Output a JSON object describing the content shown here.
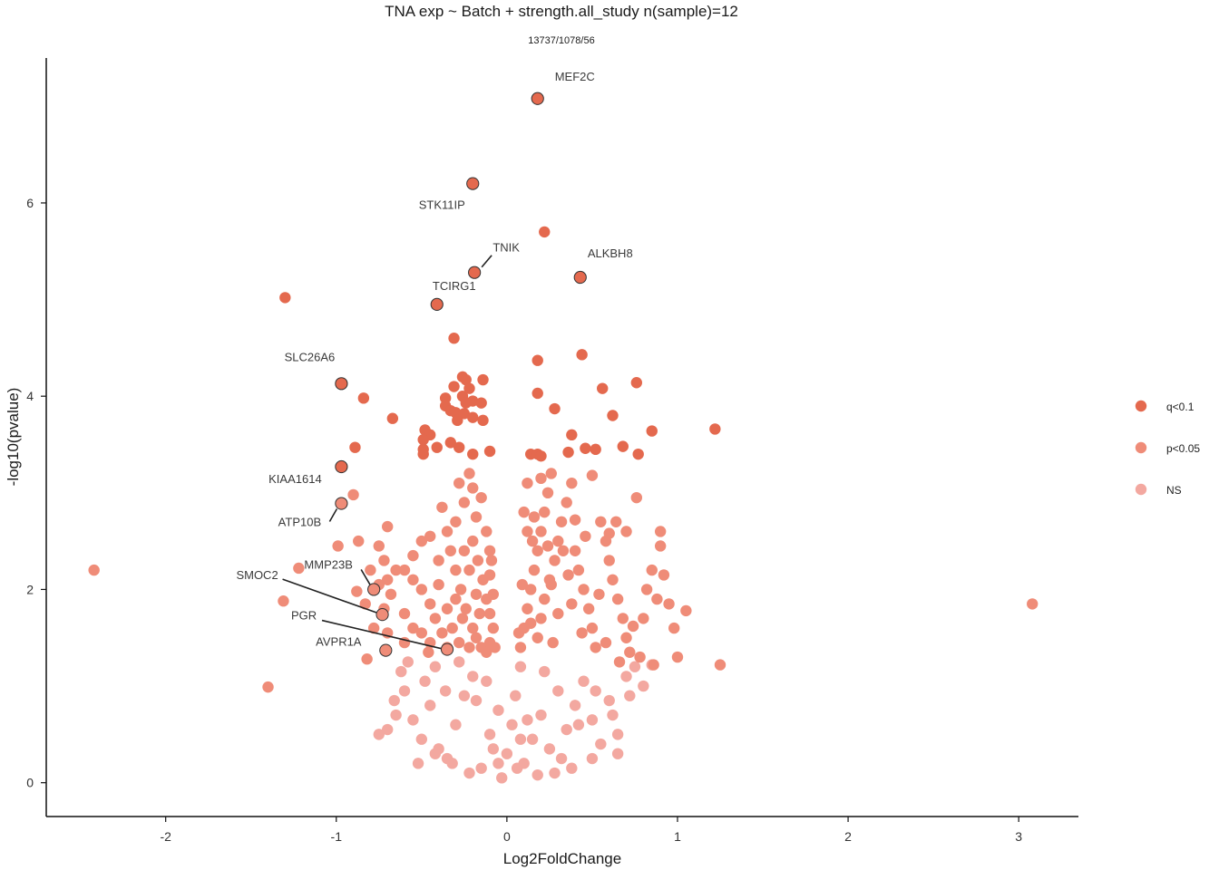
{
  "chart_data": {
    "type": "scatter",
    "title": "TNA exp ~ Batch + strength.all_study n(sample)=12",
    "subtitle": "13737/1078/56",
    "xlabel": "Log2FoldChange",
    "ylabel": "-log10(pvalue)",
    "xlim": [
      -2.7,
      3.35
    ],
    "ylim": [
      -0.35,
      7.5
    ],
    "x_ticks": [
      -2,
      -1,
      0,
      1,
      2,
      3
    ],
    "y_ticks": [
      0,
      2,
      4,
      6
    ],
    "x_tick_labels": [
      "-2",
      "-1",
      "0",
      "1",
      "2",
      "3"
    ],
    "y_tick_labels": [
      "0",
      "2",
      "4",
      "6"
    ],
    "grid": false,
    "legend_position": "right",
    "legend": [
      {
        "key": "q",
        "label": "q<0.1",
        "color": "#e4694e"
      },
      {
        "key": "p",
        "label": "p<0.05",
        "color": "#ef8c78"
      },
      {
        "key": "ns",
        "label": "NS",
        "color": "#f3a8a0"
      }
    ],
    "series": [
      {
        "name": "q<0.1",
        "color": "#e4694e",
        "points": [
          [
            -0.26,
            4.2
          ],
          [
            -0.24,
            4.17
          ],
          [
            -0.14,
            4.17
          ],
          [
            -0.31,
            4.1
          ],
          [
            -0.22,
            4.08
          ],
          [
            -0.26,
            4.0
          ],
          [
            -0.36,
            3.98
          ],
          [
            -0.2,
            3.95
          ],
          [
            -0.15,
            3.93
          ],
          [
            -0.24,
            3.93
          ],
          [
            -0.36,
            3.9
          ],
          [
            -0.33,
            3.85
          ],
          [
            -0.3,
            3.83
          ],
          [
            -0.25,
            3.82
          ],
          [
            -0.2,
            3.78
          ],
          [
            -0.29,
            3.75
          ],
          [
            -0.14,
            3.75
          ],
          [
            -0.48,
            3.65
          ],
          [
            -0.45,
            3.6
          ],
          [
            -0.49,
            3.55
          ],
          [
            -0.33,
            3.52
          ],
          [
            -0.41,
            3.47
          ],
          [
            -0.49,
            3.45
          ],
          [
            -0.49,
            3.4
          ],
          [
            -0.2,
            3.4
          ],
          [
            -0.1,
            3.43
          ],
          [
            -0.28,
            3.47
          ],
          [
            0.14,
            3.4
          ],
          [
            0.18,
            3.4
          ],
          [
            0.2,
            3.38
          ],
          [
            0.36,
            3.42
          ],
          [
            0.46,
            3.46
          ],
          [
            0.52,
            3.45
          ],
          [
            0.38,
            3.6
          ],
          [
            0.22,
            5.7
          ],
          [
            0.44,
            4.43
          ],
          [
            0.18,
            4.37
          ],
          [
            0.18,
            4.03
          ],
          [
            0.28,
            3.87
          ],
          [
            0.56,
            4.08
          ],
          [
            0.76,
            4.14
          ],
          [
            0.62,
            3.8
          ],
          [
            0.85,
            3.64
          ],
          [
            0.68,
            3.48
          ],
          [
            0.77,
            3.4
          ],
          [
            1.22,
            3.66
          ],
          [
            -0.31,
            4.6
          ],
          [
            -1.3,
            5.02
          ],
          [
            -0.84,
            3.98
          ],
          [
            -0.67,
            3.77
          ],
          [
            -0.89,
            3.47
          ]
        ]
      },
      {
        "name": "p<0.05",
        "color": "#ef8c78",
        "points": [
          [
            -2.42,
            2.2
          ],
          [
            3.08,
            1.85
          ],
          [
            -1.31,
            1.88
          ],
          [
            -1.4,
            0.99
          ],
          [
            -1.22,
            2.22
          ],
          [
            -0.99,
            2.45
          ],
          [
            -0.9,
            2.98
          ],
          [
            -0.88,
            1.98
          ],
          [
            -0.83,
            1.85
          ],
          [
            -0.87,
            2.5
          ],
          [
            -0.75,
            2.45
          ],
          [
            -0.72,
            2.3
          ],
          [
            -0.7,
            2.65
          ],
          [
            -0.7,
            2.1
          ],
          [
            -0.68,
            1.95
          ],
          [
            -0.6,
            2.2
          ],
          [
            -0.55,
            2.1
          ],
          [
            -0.5,
            2.0
          ],
          [
            -0.45,
            2.55
          ],
          [
            -0.4,
            2.3
          ],
          [
            -0.6,
            1.75
          ],
          [
            -0.8,
            2.2
          ],
          [
            -0.65,
            2.2
          ],
          [
            -0.75,
            2.05
          ],
          [
            -0.72,
            1.8
          ],
          [
            -0.55,
            1.6
          ],
          [
            -0.82,
            1.28
          ],
          [
            -0.5,
            1.55
          ],
          [
            -0.45,
            1.45
          ],
          [
            -0.6,
            1.45
          ],
          [
            -0.7,
            1.55
          ],
          [
            -0.78,
            1.6
          ],
          [
            -0.45,
            1.85
          ],
          [
            -0.55,
            2.35
          ],
          [
            -0.38,
            2.85
          ],
          [
            -0.35,
            2.6
          ],
          [
            -0.3,
            2.7
          ],
          [
            -0.28,
            3.1
          ],
          [
            -0.25,
            2.9
          ],
          [
            -0.22,
            3.2
          ],
          [
            -0.2,
            3.05
          ],
          [
            -0.18,
            2.75
          ],
          [
            -0.15,
            2.95
          ],
          [
            -0.12,
            2.6
          ],
          [
            -0.1,
            2.4
          ],
          [
            -0.33,
            2.4
          ],
          [
            -0.3,
            2.2
          ],
          [
            -0.27,
            2.0
          ],
          [
            -0.24,
            1.8
          ],
          [
            -0.2,
            1.6
          ],
          [
            -0.18,
            1.5
          ],
          [
            -0.15,
            1.4
          ],
          [
            -0.12,
            1.35
          ],
          [
            -0.1,
            1.45
          ],
          [
            -0.08,
            1.6
          ],
          [
            -0.35,
            1.8
          ],
          [
            -0.32,
            1.6
          ],
          [
            -0.28,
            1.45
          ],
          [
            -0.25,
            2.4
          ],
          [
            -0.22,
            2.2
          ],
          [
            -0.2,
            2.5
          ],
          [
            -0.17,
            2.3
          ],
          [
            -0.14,
            2.1
          ],
          [
            -0.12,
            1.9
          ],
          [
            -0.1,
            1.75
          ],
          [
            -0.4,
            2.05
          ],
          [
            -0.42,
            1.7
          ],
          [
            -0.38,
            1.55
          ],
          [
            -0.3,
            1.9
          ],
          [
            -0.26,
            1.7
          ],
          [
            -0.22,
            1.4
          ],
          [
            -0.18,
            1.95
          ],
          [
            -0.16,
            1.75
          ],
          [
            -0.1,
            2.15
          ],
          [
            -0.08,
            1.95
          ],
          [
            -0.07,
            1.4
          ],
          [
            -0.35,
            1.4
          ],
          [
            -0.5,
            2.5
          ],
          [
            -0.46,
            1.35
          ],
          [
            -0.09,
            2.3
          ],
          [
            0.08,
            1.4
          ],
          [
            0.1,
            1.6
          ],
          [
            0.12,
            1.8
          ],
          [
            0.14,
            2.0
          ],
          [
            0.16,
            2.2
          ],
          [
            0.18,
            2.4
          ],
          [
            0.2,
            2.6
          ],
          [
            0.22,
            2.8
          ],
          [
            0.24,
            3.0
          ],
          [
            0.26,
            3.2
          ],
          [
            0.1,
            2.8
          ],
          [
            0.12,
            2.6
          ],
          [
            0.15,
            2.5
          ],
          [
            0.18,
            1.5
          ],
          [
            0.2,
            1.7
          ],
          [
            0.22,
            1.9
          ],
          [
            0.25,
            2.1
          ],
          [
            0.28,
            2.3
          ],
          [
            0.3,
            2.5
          ],
          [
            0.32,
            2.7
          ],
          [
            0.35,
            2.9
          ],
          [
            0.38,
            3.1
          ],
          [
            0.4,
            2.4
          ],
          [
            0.42,
            2.2
          ],
          [
            0.45,
            2.0
          ],
          [
            0.48,
            1.8
          ],
          [
            0.5,
            1.6
          ],
          [
            0.52,
            1.4
          ],
          [
            0.55,
            2.7
          ],
          [
            0.58,
            2.5
          ],
          [
            0.6,
            2.3
          ],
          [
            0.62,
            2.1
          ],
          [
            0.65,
            1.9
          ],
          [
            0.68,
            1.7
          ],
          [
            0.7,
            1.5
          ],
          [
            0.72,
            1.35
          ],
          [
            0.78,
            1.3
          ],
          [
            0.8,
            1.7
          ],
          [
            0.82,
            2.0
          ],
          [
            0.85,
            2.2
          ],
          [
            0.88,
            1.9
          ],
          [
            0.9,
            2.45
          ],
          [
            0.9,
            2.6
          ],
          [
            0.92,
            2.15
          ],
          [
            0.95,
            1.85
          ],
          [
            0.98,
            1.6
          ],
          [
            1.0,
            1.3
          ],
          [
            1.05,
            1.78
          ],
          [
            1.25,
            1.22
          ],
          [
            0.76,
            2.95
          ],
          [
            0.5,
            3.18
          ],
          [
            0.4,
            2.72
          ],
          [
            0.33,
            2.4
          ],
          [
            0.27,
            1.45
          ],
          [
            0.3,
            1.75
          ],
          [
            0.6,
            2.58
          ],
          [
            0.7,
            2.6
          ],
          [
            0.46,
            2.55
          ],
          [
            0.12,
            3.1
          ],
          [
            0.2,
            3.15
          ],
          [
            0.16,
            2.75
          ],
          [
            0.24,
            2.45
          ],
          [
            0.36,
            2.15
          ],
          [
            0.44,
            1.55
          ],
          [
            0.58,
            1.45
          ],
          [
            0.64,
            2.7
          ],
          [
            0.38,
            1.85
          ],
          [
            0.14,
            1.65
          ],
          [
            0.09,
            2.05
          ],
          [
            0.66,
            1.25
          ],
          [
            0.86,
            1.22
          ],
          [
            0.54,
            1.95
          ],
          [
            0.26,
            2.05
          ],
          [
            0.07,
            1.55
          ],
          [
            0.74,
            1.62
          ]
        ]
      },
      {
        "name": "NS",
        "color": "#f3a8a0",
        "points": [
          [
            -0.65,
            0.7
          ],
          [
            -0.7,
            0.55
          ],
          [
            -0.75,
            0.5
          ],
          [
            -0.55,
            0.65
          ],
          [
            -0.5,
            0.45
          ],
          [
            -0.45,
            0.8
          ],
          [
            -0.4,
            0.35
          ],
          [
            -0.35,
            0.25
          ],
          [
            -0.3,
            0.6
          ],
          [
            -0.25,
            0.9
          ],
          [
            -0.2,
            1.1
          ],
          [
            -0.15,
            0.15
          ],
          [
            -0.1,
            0.5
          ],
          [
            -0.05,
            0.75
          ],
          [
            -0.03,
            0.05
          ],
          [
            0.0,
            0.3
          ],
          [
            0.03,
            0.6
          ],
          [
            0.05,
            0.9
          ],
          [
            0.08,
            1.2
          ],
          [
            0.1,
            0.2
          ],
          [
            0.15,
            0.45
          ],
          [
            0.2,
            0.7
          ],
          [
            0.25,
            0.35
          ],
          [
            0.3,
            0.95
          ],
          [
            0.35,
            0.55
          ],
          [
            0.4,
            0.8
          ],
          [
            0.45,
            1.05
          ],
          [
            0.5,
            0.65
          ],
          [
            0.55,
            0.4
          ],
          [
            0.6,
            0.85
          ],
          [
            0.65,
            0.5
          ],
          [
            0.7,
            1.1
          ],
          [
            0.75,
            1.2
          ],
          [
            0.8,
            1.0
          ],
          [
            0.85,
            1.22
          ],
          [
            0.65,
            0.3
          ],
          [
            0.5,
            0.25
          ],
          [
            0.38,
            0.15
          ],
          [
            0.28,
            0.1
          ],
          [
            0.18,
            0.08
          ],
          [
            -0.22,
            0.1
          ],
          [
            -0.32,
            0.2
          ],
          [
            -0.42,
            0.3
          ],
          [
            -0.52,
            0.2
          ],
          [
            -0.6,
            0.95
          ],
          [
            -0.62,
            1.15
          ],
          [
            -0.66,
            0.85
          ],
          [
            -0.58,
            1.25
          ],
          [
            -0.48,
            1.05
          ],
          [
            -0.42,
            1.2
          ],
          [
            -0.36,
            0.95
          ],
          [
            -0.28,
            1.25
          ],
          [
            -0.18,
            0.85
          ],
          [
            -0.12,
            1.05
          ],
          [
            -0.08,
            0.35
          ],
          [
            0.06,
            0.15
          ],
          [
            0.12,
            0.65
          ],
          [
            0.22,
            1.15
          ],
          [
            0.32,
            0.25
          ],
          [
            0.42,
            0.6
          ],
          [
            0.52,
            0.95
          ],
          [
            0.62,
            0.7
          ],
          [
            0.72,
            0.9
          ],
          [
            0.08,
            0.45
          ],
          [
            -0.05,
            0.2
          ]
        ]
      }
    ],
    "labeled_genes": [
      {
        "gene": "MEF2C",
        "x": 0.18,
        "y": 7.08
      },
      {
        "gene": "STK11IP",
        "x": -0.2,
        "y": 6.2
      },
      {
        "gene": "TNIK",
        "x": -0.19,
        "y": 5.28
      },
      {
        "gene": "ALKBH8",
        "x": 0.43,
        "y": 5.23
      },
      {
        "gene": "TCIRG1",
        "x": -0.41,
        "y": 4.95
      },
      {
        "gene": "SLC26A6",
        "x": -0.97,
        "y": 4.13
      },
      {
        "gene": "KIAA1614",
        "x": -0.97,
        "y": 3.27
      },
      {
        "gene": "ATP10B",
        "x": -0.97,
        "y": 2.89
      },
      {
        "gene": "MMP23B",
        "x": -0.78,
        "y": 2.0
      },
      {
        "gene": "SMOC2",
        "x": -0.73,
        "y": 1.74
      },
      {
        "gene": "PGR",
        "x": -0.35,
        "y": 1.38
      },
      {
        "gene": "AVPR1A",
        "x": -0.71,
        "y": 1.37
      }
    ]
  }
}
